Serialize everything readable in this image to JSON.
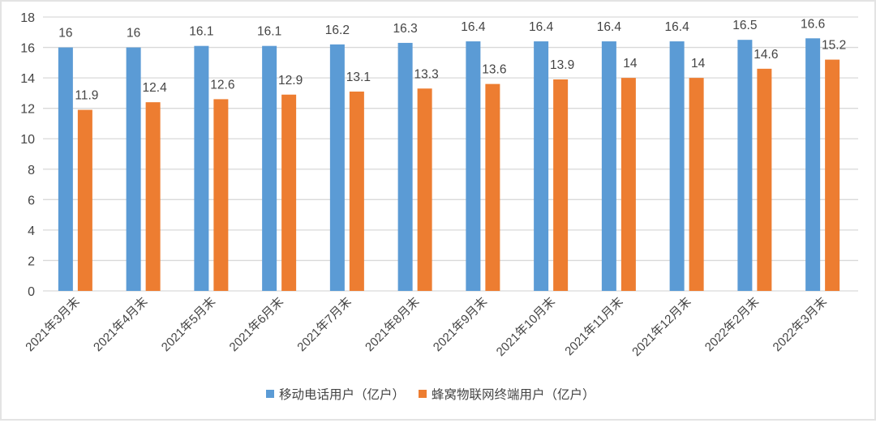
{
  "chart_data": {
    "type": "bar",
    "title": "",
    "xlabel": "",
    "ylabel": "",
    "ylim": [
      0,
      18
    ],
    "yticks": [
      0,
      2,
      4,
      6,
      8,
      10,
      12,
      14,
      16,
      18
    ],
    "grid": true,
    "legend_position": "bottom",
    "data_labels": true,
    "categories": [
      "2021年3月末",
      "2021年4月末",
      "2021年5月末",
      "2021年6月末",
      "2021年7月末",
      "2021年8月末",
      "2021年9月末",
      "2021年10月末",
      "2021年11月末",
      "2021年12月末",
      "2022年2月末",
      "2022年3月末"
    ],
    "series": [
      {
        "name": "移动电话用户（亿户）",
        "color": "#5b9bd5",
        "values": [
          16,
          16,
          16.1,
          16.1,
          16.2,
          16.3,
          16.4,
          16.4,
          16.4,
          16.4,
          16.5,
          16.6
        ]
      },
      {
        "name": "蜂窝物联网终端用户（亿户）",
        "color": "#ed7d31",
        "values": [
          11.9,
          12.4,
          12.6,
          12.9,
          13.1,
          13.3,
          13.6,
          13.9,
          14,
          14,
          14.6,
          15.2
        ]
      }
    ]
  }
}
